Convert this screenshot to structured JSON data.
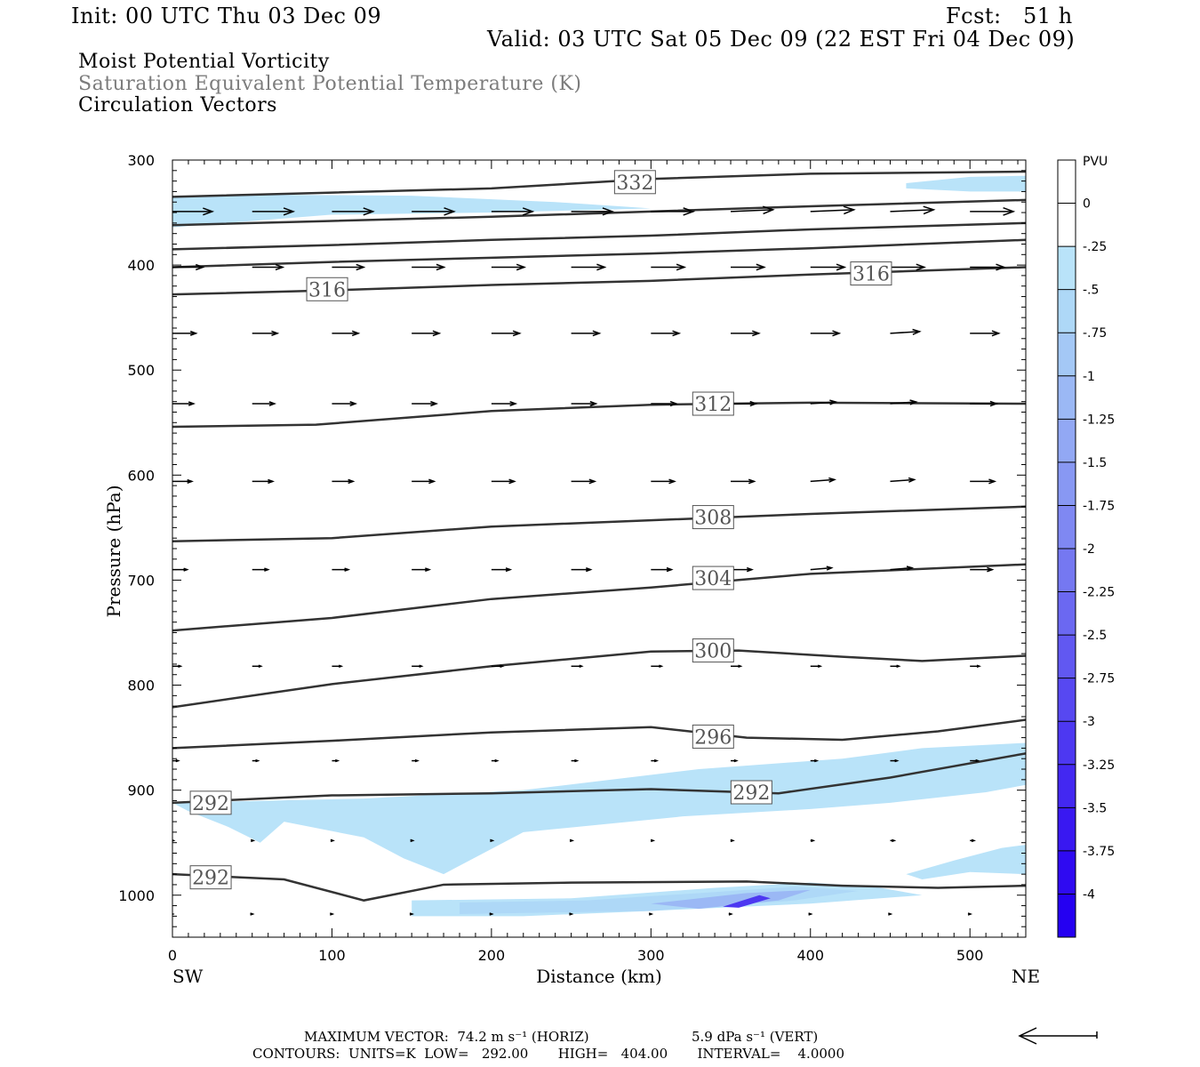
{
  "header": {
    "init": "Init: 00 UTC Thu 03 Dec 09",
    "fcst": "Fcst:   51 h",
    "valid": "Valid: 03 UTC Sat 05 Dec 09 (22 EST Fri 04 Dec 09)",
    "line1": "Moist Potential Vorticity",
    "line2": "Saturation Equivalent Potential Temperature (K)",
    "line3": "Circulation Vectors"
  },
  "footer": {
    "max_vector": "MAXIMUM VECTOR:  74.2 m s⁻¹ (HORIZ)",
    "vert": "5.9 dPa s⁻¹ (VERT)",
    "contours": "CONTOURS:  UNITS=K  LOW=   292.00       HIGH=   404.00       INTERVAL=    4.0000"
  },
  "colors": {
    "contour": "#333333",
    "shade_light": "#b8e2f8",
    "shade_mid": "#a9c0f2",
    "shade_dark": "#6a6aef",
    "shade_deep": "#2020f0"
  },
  "chart_data": {
    "type": "cross-section",
    "xlabel": "Distance (km)",
    "ylabel": "Pressure (hPa)",
    "xlim": [
      0,
      535
    ],
    "ylim": [
      1040,
      300
    ],
    "x_ticks": [
      0,
      100,
      200,
      300,
      400,
      500
    ],
    "x_tick_labels": [
      "0",
      "100",
      "200",
      "300",
      "400",
      "500"
    ],
    "y_ticks": [
      300,
      400,
      500,
      600,
      700,
      800,
      900,
      1000
    ],
    "y_tick_labels": [
      "300",
      "400",
      "500",
      "600",
      "700",
      "800",
      "900",
      "1000"
    ],
    "x_endpoints": {
      "left": "SW",
      "right": "NE"
    },
    "colorbar": {
      "title": "PVU",
      "labels": [
        "0",
        "-.25",
        "-.5",
        "-.75",
        "-1",
        "-1.25",
        "-1.5",
        "-1.75",
        "-2",
        "-2.25",
        "-2.5",
        "-2.75",
        "-3",
        "-3.25",
        "-3.5",
        "-3.75",
        "-4"
      ],
      "colors": [
        "#ffffff",
        "#ffffff",
        "#b9e3f9",
        "#aed8f7",
        "#a4c8f6",
        "#9bb8f5",
        "#92a8f4",
        "#8898f3",
        "#7f88f2",
        "#7578f1",
        "#6b68f1",
        "#6158f1",
        "#5748f1",
        "#4d38f1",
        "#4328f1",
        "#3918f1",
        "#2f0af1",
        "#2500f1"
      ]
    },
    "contours": [
      {
        "value": 332,
        "label": "332",
        "label_at": [
          290,
          321
        ],
        "points": [
          [
            0,
            335
          ],
          [
            100,
            331
          ],
          [
            200,
            327
          ],
          [
            300,
            318
          ],
          [
            400,
            313
          ],
          [
            535,
            311
          ]
        ]
      },
      {
        "value": 328,
        "points": [
          [
            0,
            362
          ],
          [
            100,
            358
          ],
          [
            200,
            354
          ],
          [
            300,
            349
          ],
          [
            400,
            344
          ],
          [
            535,
            338
          ]
        ]
      },
      {
        "value": 324,
        "points": [
          [
            0,
            385
          ],
          [
            100,
            381
          ],
          [
            200,
            376
          ],
          [
            300,
            372
          ],
          [
            400,
            366
          ],
          [
            535,
            360
          ]
        ]
      },
      {
        "value": 320,
        "points": [
          [
            0,
            402
          ],
          [
            100,
            397
          ],
          [
            200,
            393
          ],
          [
            300,
            389
          ],
          [
            400,
            384
          ],
          [
            535,
            376
          ]
        ]
      },
      {
        "value": 316,
        "label": "316",
        "label_at": [
          97,
          423
        ],
        "label_at2": [
          438,
          408
        ],
        "points": [
          [
            0,
            428
          ],
          [
            100,
            424
          ],
          [
            200,
            419
          ],
          [
            300,
            415
          ],
          [
            400,
            409
          ],
          [
            535,
            402
          ]
        ]
      },
      {
        "value": 312,
        "label": "312",
        "label_at": [
          339,
          532
        ],
        "points": [
          [
            0,
            554
          ],
          [
            90,
            552
          ],
          [
            200,
            539
          ],
          [
            300,
            533
          ],
          [
            400,
            531
          ],
          [
            535,
            532
          ]
        ]
      },
      {
        "value": 308,
        "label": "308",
        "label_at": [
          339,
          640
        ],
        "points": [
          [
            0,
            663
          ],
          [
            100,
            660
          ],
          [
            200,
            649
          ],
          [
            300,
            643
          ],
          [
            400,
            637
          ],
          [
            535,
            630
          ]
        ]
      },
      {
        "value": 304,
        "label": "304",
        "label_at": [
          339,
          698
        ],
        "points": [
          [
            0,
            748
          ],
          [
            100,
            736
          ],
          [
            200,
            718
          ],
          [
            300,
            707
          ],
          [
            400,
            694
          ],
          [
            535,
            685
          ]
        ]
      },
      {
        "value": 300,
        "label": "300",
        "label_at": [
          339,
          767
        ],
        "points": [
          [
            0,
            821
          ],
          [
            100,
            799
          ],
          [
            200,
            782
          ],
          [
            300,
            768
          ],
          [
            355,
            767
          ],
          [
            420,
            773
          ],
          [
            470,
            777
          ],
          [
            535,
            772
          ]
        ]
      },
      {
        "value": 296,
        "label": "296",
        "label_at": [
          339,
          849
        ],
        "points": [
          [
            0,
            860
          ],
          [
            100,
            853
          ],
          [
            200,
            845
          ],
          [
            300,
            840
          ],
          [
            360,
            850
          ],
          [
            420,
            852
          ],
          [
            480,
            844
          ],
          [
            535,
            833
          ]
        ]
      },
      {
        "value": 292,
        "label": "292",
        "label_at": [
          24,
          912
        ],
        "label_at2": [
          363,
          902
        ],
        "points": [
          [
            0,
            912
          ],
          [
            100,
            905
          ],
          [
            200,
            903
          ],
          [
            300,
            899
          ],
          [
            380,
            903
          ],
          [
            450,
            888
          ],
          [
            535,
            865
          ]
        ]
      },
      {
        "value": 292,
        "label": "292",
        "label_at": [
          24,
          983
        ],
        "points": [
          [
            0,
            980
          ],
          [
            70,
            985
          ],
          [
            120,
            1005
          ],
          [
            170,
            990
          ],
          [
            250,
            988
          ],
          [
            360,
            987
          ],
          [
            420,
            991
          ],
          [
            480,
            993
          ],
          [
            535,
            991
          ]
        ]
      }
    ],
    "vector_rows": [
      {
        "pressure": 349,
        "x": [
          0,
          50,
          100,
          150,
          200,
          250,
          300,
          350,
          400,
          450,
          500
        ],
        "u": [
          68,
          70,
          70,
          72,
          70,
          70,
          72,
          72,
          74,
          74,
          74
        ],
        "w": [
          0,
          0,
          0,
          0,
          0,
          0,
          0,
          -1,
          -1,
          -1,
          0
        ]
      },
      {
        "pressure": 402,
        "x": [
          0,
          50,
          100,
          150,
          200,
          250,
          300,
          350,
          400,
          450,
          500
        ],
        "u": [
          52,
          52,
          54,
          55,
          56,
          57,
          57,
          57,
          58,
          58,
          58
        ],
        "w": [
          0,
          0,
          0,
          0,
          0,
          0,
          0,
          0,
          0,
          0,
          0
        ]
      },
      {
        "pressure": 465,
        "x": [
          0,
          50,
          100,
          150,
          200,
          250,
          300,
          350,
          400,
          450,
          500
        ],
        "u": [
          40,
          43,
          45,
          47,
          48,
          48,
          48,
          48,
          49,
          50,
          49
        ],
        "w": [
          0,
          0,
          0,
          0,
          0,
          0,
          0,
          0,
          0,
          -1,
          0
        ]
      },
      {
        "pressure": 532,
        "x": [
          0,
          50,
          100,
          150,
          200,
          250,
          300,
          350,
          400,
          450,
          500
        ],
        "u": [
          36,
          38,
          40,
          42,
          41,
          42,
          43,
          43,
          43,
          44,
          45
        ],
        "w": [
          0,
          0,
          0,
          0,
          0,
          0,
          0,
          0,
          -1,
          -1,
          0
        ]
      },
      {
        "pressure": 606,
        "x": [
          0,
          50,
          100,
          150,
          200,
          250,
          300,
          350,
          400,
          450,
          500
        ],
        "u": [
          33,
          35,
          36,
          38,
          39,
          40,
          40,
          40,
          41,
          41,
          42
        ],
        "w": [
          0,
          0,
          0,
          0,
          0,
          0,
          0,
          0,
          -1,
          -1,
          0
        ]
      },
      {
        "pressure": 690,
        "x": [
          0,
          50,
          100,
          150,
          200,
          250,
          300,
          350,
          400,
          450,
          500
        ],
        "u": [
          25,
          27,
          28,
          30,
          32,
          33,
          35,
          36,
          36,
          37,
          38
        ],
        "w": [
          0,
          0,
          0,
          0,
          0,
          0,
          0,
          0,
          -1,
          -1,
          0
        ]
      },
      {
        "pressure": 782,
        "x": [
          0,
          50,
          100,
          150,
          200,
          250,
          300,
          350,
          400,
          450,
          500
        ],
        "u": [
          14,
          15,
          16,
          17,
          19,
          18,
          18,
          17,
          17,
          15,
          16
        ],
        "w": [
          0,
          0,
          0,
          0,
          0,
          0,
          0,
          0,
          0,
          0,
          0
        ]
      },
      {
        "pressure": 872,
        "x": [
          0,
          50,
          100,
          150,
          200,
          250,
          300,
          350,
          400,
          450,
          500
        ],
        "u": [
          10,
          10,
          10,
          10,
          10,
          10,
          10,
          10,
          11,
          12,
          14
        ],
        "w": [
          0,
          0,
          0,
          0,
          0,
          0,
          0,
          0,
          0,
          0,
          0
        ]
      },
      {
        "pressure": 948,
        "x": [
          0,
          50,
          100,
          150,
          200,
          250,
          300,
          350,
          400,
          450,
          500
        ],
        "u": [
          2,
          2,
          2,
          2,
          2,
          2,
          4,
          4,
          5,
          7,
          7
        ],
        "w": [
          0,
          0,
          0,
          0,
          0,
          0,
          0,
          0,
          0,
          0,
          0
        ]
      },
      {
        "pressure": 1018,
        "x": [
          0,
          50,
          100,
          150,
          200,
          250,
          300,
          350,
          400,
          450,
          500
        ],
        "u": [
          1,
          1,
          1,
          1,
          1,
          1,
          1,
          1,
          1,
          1,
          1
        ],
        "w": [
          0,
          0,
          0,
          0,
          0,
          0,
          0,
          0,
          0,
          0,
          0
        ]
      }
    ],
    "shaded_regions": [
      {
        "level": "-.25",
        "points": [
          [
            0,
            335
          ],
          [
            60,
            333
          ],
          [
            150,
            334
          ],
          [
            240,
            340
          ],
          [
            300,
            346
          ],
          [
            200,
            350
          ],
          [
            100,
            352
          ],
          [
            0,
            364
          ]
        ]
      },
      {
        "level": "-.25",
        "points": [
          [
            460,
            322
          ],
          [
            500,
            316
          ],
          [
            535,
            315
          ],
          [
            535,
            330
          ],
          [
            500,
            330
          ],
          [
            460,
            327
          ]
        ]
      },
      {
        "level": "-.25",
        "points": [
          [
            0,
            912
          ],
          [
            120,
            908
          ],
          [
            220,
            900
          ],
          [
            330,
            880
          ],
          [
            420,
            870
          ],
          [
            470,
            860
          ],
          [
            535,
            855
          ],
          [
            535,
            895
          ],
          [
            510,
            902
          ],
          [
            450,
            912
          ],
          [
            400,
            918
          ],
          [
            320,
            925
          ],
          [
            220,
            940
          ],
          [
            170,
            980
          ],
          [
            145,
            965
          ],
          [
            120,
            945
          ],
          [
            70,
            930
          ],
          [
            55,
            950
          ],
          [
            35,
            935
          ],
          [
            10,
            920
          ]
        ]
      },
      {
        "level": "-.25",
        "points": [
          [
            460,
            980
          ],
          [
            490,
            967
          ],
          [
            520,
            955
          ],
          [
            535,
            952
          ],
          [
            535,
            980
          ],
          [
            500,
            978
          ],
          [
            470,
            985
          ]
        ]
      },
      {
        "level": "-.25",
        "points": [
          [
            150,
            1005
          ],
          [
            250,
            1003
          ],
          [
            340,
            993
          ],
          [
            400,
            988
          ],
          [
            440,
            992
          ],
          [
            470,
            1000
          ],
          [
            400,
            1008
          ],
          [
            300,
            1015
          ],
          [
            220,
            1020
          ],
          [
            150,
            1020
          ]
        ]
      },
      {
        "level": "-.5",
        "points": [
          [
            180,
            1007
          ],
          [
            260,
            1005
          ],
          [
            340,
            997
          ],
          [
            390,
            992
          ],
          [
            430,
            996
          ],
          [
            390,
            1005
          ],
          [
            300,
            1015
          ],
          [
            180,
            1018
          ]
        ]
      },
      {
        "level": "-1",
        "points": [
          [
            300,
            1008
          ],
          [
            360,
            998
          ],
          [
            400,
            995
          ],
          [
            380,
            1005
          ],
          [
            330,
            1013
          ]
        ]
      },
      {
        "level": "-3",
        "points": [
          [
            345,
            1011
          ],
          [
            368,
            1000
          ],
          [
            375,
            1003
          ],
          [
            355,
            1012
          ]
        ]
      }
    ]
  },
  "max_vector_arrow": {
    "direction": "left"
  }
}
